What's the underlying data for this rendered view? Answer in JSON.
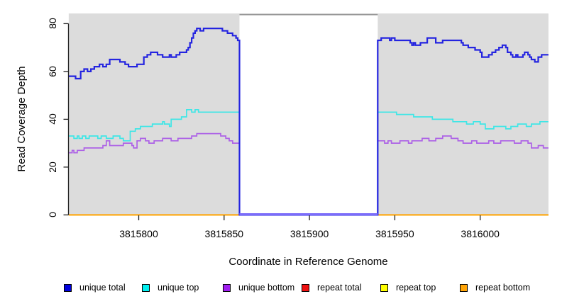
{
  "figure": {
    "background": "#ffffff",
    "panel_background": "#dcdcdc",
    "axis_color": "#222222",
    "gap_top_border_color": "#969696",
    "gap_zero_line_color": "#7b6cfa"
  },
  "chart_data": {
    "type": "line",
    "subtype": "step",
    "title": "",
    "xlabel": "Coordinate in Reference Genome",
    "ylabel": "Read Coverage Depth",
    "xlim": [
      3815759,
      3816040
    ],
    "ylim": [
      0,
      84
    ],
    "grid": false,
    "legend_position": "bottom",
    "gap": {
      "start": 3815859,
      "end": 3815940,
      "note": "white uncovered region, all series drop to 0"
    },
    "x_ticks": [
      {
        "value": 3815800,
        "label": "3815800"
      },
      {
        "value": 3815850,
        "label": "3815850"
      },
      {
        "value": 3815900,
        "label": "3815900"
      },
      {
        "value": 3815950,
        "label": "3815950"
      },
      {
        "value": 3816000,
        "label": "3816000"
      }
    ],
    "y_ticks": [
      {
        "value": 0,
        "label": "0"
      },
      {
        "value": 20,
        "label": "20"
      },
      {
        "value": 40,
        "label": "40"
      },
      {
        "value": 60,
        "label": "60"
      },
      {
        "value": 80,
        "label": "80"
      }
    ],
    "series": [
      {
        "name": "unique total",
        "color": "#2424e0",
        "legend_color": "#0101dd",
        "width": 2.2,
        "points": [
          [
            3815759,
            58
          ],
          [
            3815763,
            57
          ],
          [
            3815766,
            60
          ],
          [
            3815768,
            61
          ],
          [
            3815770,
            60
          ],
          [
            3815772,
            61
          ],
          [
            3815774,
            62
          ],
          [
            3815777,
            63
          ],
          [
            3815779,
            62
          ],
          [
            3815781,
            63
          ],
          [
            3815783,
            65
          ],
          [
            3815789,
            64
          ],
          [
            3815792,
            63
          ],
          [
            3815794,
            62
          ],
          [
            3815799,
            63
          ],
          [
            3815803,
            66
          ],
          [
            3815805,
            67
          ],
          [
            3815807,
            68
          ],
          [
            3815811,
            67
          ],
          [
            3815814,
            66
          ],
          [
            3815818,
            67
          ],
          [
            3815819,
            66
          ],
          [
            3815822,
            67
          ],
          [
            3815824,
            68
          ],
          [
            3815828,
            69
          ],
          [
            3815829,
            70
          ],
          [
            3815830,
            72
          ],
          [
            3815831,
            74
          ],
          [
            3815832,
            76
          ],
          [
            3815833,
            77
          ],
          [
            3815834,
            78
          ],
          [
            3815836,
            77
          ],
          [
            3815838,
            78
          ],
          [
            3815849,
            77
          ],
          [
            3815852,
            76
          ],
          [
            3815855,
            75
          ],
          [
            3815857,
            74
          ],
          [
            3815858,
            73
          ],
          [
            3815859,
            0
          ],
          [
            3815940,
            73
          ],
          [
            3815942,
            74
          ],
          [
            3815947,
            73
          ],
          [
            3815948,
            74
          ],
          [
            3815950,
            73
          ],
          [
            3815959,
            72
          ],
          [
            3815960,
            71
          ],
          [
            3815961,
            72
          ],
          [
            3815962,
            71
          ],
          [
            3815965,
            72
          ],
          [
            3815969,
            74
          ],
          [
            3815974,
            72
          ],
          [
            3815978,
            73
          ],
          [
            3815989,
            72
          ],
          [
            3815990,
            71
          ],
          [
            3815993,
            70
          ],
          [
            3815997,
            69
          ],
          [
            3816000,
            68
          ],
          [
            3816001,
            66
          ],
          [
            3816005,
            67
          ],
          [
            3816007,
            68
          ],
          [
            3816009,
            69
          ],
          [
            3816011,
            70
          ],
          [
            3816013,
            71
          ],
          [
            3816015,
            70
          ],
          [
            3816016,
            68
          ],
          [
            3816018,
            67
          ],
          [
            3816019,
            66
          ],
          [
            3816021,
            67
          ],
          [
            3816022,
            66
          ],
          [
            3816025,
            67
          ],
          [
            3816026,
            68
          ],
          [
            3816028,
            67
          ],
          [
            3816029,
            66
          ],
          [
            3816030,
            65
          ],
          [
            3816032,
            64
          ],
          [
            3816034,
            66
          ],
          [
            3816036,
            67
          ]
        ]
      },
      {
        "name": "unique top",
        "color": "#3fe6e6",
        "legend_color": "#00f0f0",
        "width": 1.7,
        "points": [
          [
            3815759,
            33
          ],
          [
            3815762,
            32
          ],
          [
            3815764,
            33
          ],
          [
            3815765,
            32
          ],
          [
            3815767,
            33
          ],
          [
            3815769,
            32
          ],
          [
            3815771,
            33
          ],
          [
            3815776,
            32
          ],
          [
            3815778,
            33
          ],
          [
            3815781,
            32
          ],
          [
            3815785,
            33
          ],
          [
            3815789,
            32
          ],
          [
            3815791,
            31
          ],
          [
            3815795,
            35
          ],
          [
            3815798,
            36
          ],
          [
            3815801,
            37
          ],
          [
            3815808,
            38
          ],
          [
            3815813,
            38
          ],
          [
            3815814,
            39
          ],
          [
            3815815,
            38
          ],
          [
            3815818,
            37
          ],
          [
            3815819,
            40
          ],
          [
            3815823,
            40
          ],
          [
            3815825,
            41
          ],
          [
            3815828,
            44
          ],
          [
            3815831,
            43
          ],
          [
            3815833,
            44
          ],
          [
            3815835,
            43
          ],
          [
            3815859,
            0
          ],
          [
            3815940,
            43
          ],
          [
            3815951,
            42
          ],
          [
            3815961,
            41
          ],
          [
            3815972,
            40
          ],
          [
            3815984,
            39
          ],
          [
            3815992,
            38
          ],
          [
            3815996,
            39
          ],
          [
            3816000,
            38
          ],
          [
            3816003,
            36
          ],
          [
            3816008,
            37
          ],
          [
            3816015,
            36
          ],
          [
            3816018,
            37
          ],
          [
            3816022,
            38
          ],
          [
            3816027,
            37
          ],
          [
            3816030,
            38
          ],
          [
            3816035,
            39
          ]
        ]
      },
      {
        "name": "unique bottom",
        "color": "#ad62e6",
        "legend_color": "#a01ef0",
        "width": 1.7,
        "points": [
          [
            3815759,
            26
          ],
          [
            3815761,
            27
          ],
          [
            3815762,
            26
          ],
          [
            3815764,
            27
          ],
          [
            3815768,
            28
          ],
          [
            3815777,
            28
          ],
          [
            3815779,
            29
          ],
          [
            3815781,
            31
          ],
          [
            3815783,
            29
          ],
          [
            3815791,
            30
          ],
          [
            3815796,
            29
          ],
          [
            3815797,
            28
          ],
          [
            3815799,
            31
          ],
          [
            3815801,
            32
          ],
          [
            3815804,
            31
          ],
          [
            3815806,
            30
          ],
          [
            3815809,
            31
          ],
          [
            3815814,
            32
          ],
          [
            3815819,
            31
          ],
          [
            3815823,
            32
          ],
          [
            3815828,
            32
          ],
          [
            3815831,
            33
          ],
          [
            3815834,
            34
          ],
          [
            3815847,
            34
          ],
          [
            3815848,
            33
          ],
          [
            3815851,
            32
          ],
          [
            3815853,
            31
          ],
          [
            3815855,
            30
          ],
          [
            3815859,
            0
          ],
          [
            3815940,
            31
          ],
          [
            3815944,
            30
          ],
          [
            3815946,
            31
          ],
          [
            3815948,
            30
          ],
          [
            3815953,
            31
          ],
          [
            3815958,
            30
          ],
          [
            3815960,
            31
          ],
          [
            3815966,
            32
          ],
          [
            3815970,
            31
          ],
          [
            3815974,
            32
          ],
          [
            3815978,
            33
          ],
          [
            3815983,
            32
          ],
          [
            3815987,
            31
          ],
          [
            3815990,
            30
          ],
          [
            3815995,
            31
          ],
          [
            3815998,
            30
          ],
          [
            3816005,
            31
          ],
          [
            3816008,
            30
          ],
          [
            3816012,
            31
          ],
          [
            3816016,
            31
          ],
          [
            3816020,
            30
          ],
          [
            3816024,
            31
          ],
          [
            3816028,
            30
          ],
          [
            3816030,
            28
          ],
          [
            3816034,
            29
          ],
          [
            3816037,
            28
          ]
        ]
      },
      {
        "name": "repeat total",
        "color": "#ee1111",
        "legend_color": "#ee1111",
        "width": 1.7,
        "points": [
          [
            3815759,
            0
          ]
        ]
      },
      {
        "name": "repeat top",
        "color": "#ffff00",
        "legend_color": "#ffff00",
        "width": 1.7,
        "points": [
          [
            3815759,
            0
          ]
        ]
      },
      {
        "name": "repeat bottom",
        "color": "#ffa407",
        "legend_color": "#ffa407",
        "width": 2,
        "points": [
          [
            3815759,
            0
          ]
        ]
      }
    ],
    "legend_entries": [
      {
        "label": "unique total",
        "color": "#0101dd"
      },
      {
        "label": "unique top",
        "color": "#00f0f0"
      },
      {
        "label": "unique bottom",
        "color": "#a01ef0"
      },
      {
        "label": "repeat total",
        "color": "#ee1111"
      },
      {
        "label": "repeat top",
        "color": "#ffff00"
      },
      {
        "label": "repeat bottom",
        "color": "#ffa407"
      }
    ]
  }
}
